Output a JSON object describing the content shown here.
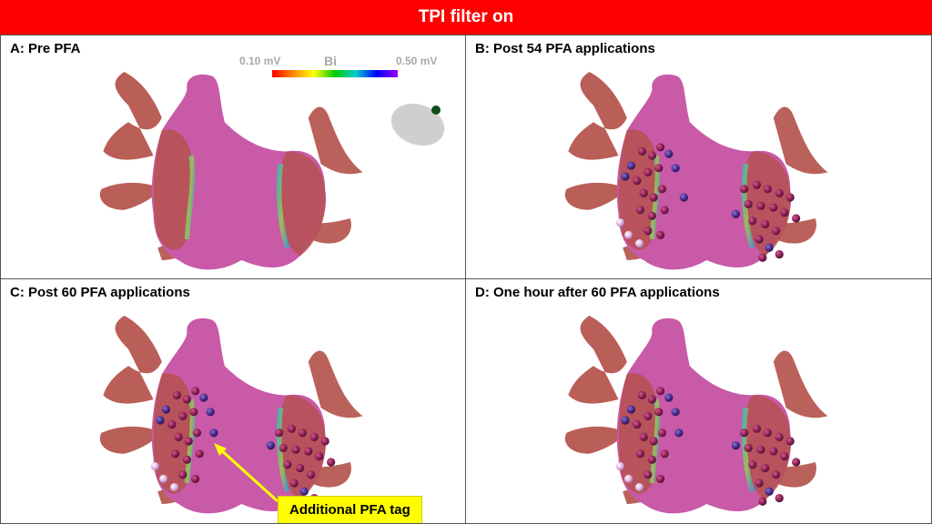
{
  "banner": {
    "title": "TPI filter on"
  },
  "panels": [
    {
      "title": "A: Pre PFA"
    },
    {
      "title": "B: Post 54 PFA applications"
    },
    {
      "title": "C: Post 60 PFA applications"
    },
    {
      "title": "D: One hour after 60 PFA applications"
    }
  ],
  "colorbar": {
    "min_label": "0.10 mV",
    "mode_label": "Bi",
    "max_label": "0.50 mV"
  },
  "callout": {
    "text": "Additional PFA tag"
  },
  "colors": {
    "banner": "#ff0000",
    "callout": "#ffff00",
    "tissue_healthy": "#c85aa8",
    "scar": "#b4504a",
    "tag": "#8a1f55"
  }
}
